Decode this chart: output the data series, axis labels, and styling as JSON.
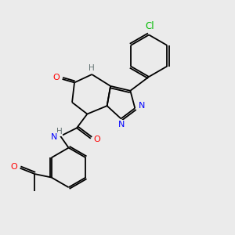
{
  "background_color": "#ebebeb",
  "atom_colors": {
    "C": "#000000",
    "N": "#0000ff",
    "O": "#ff0000",
    "Cl": "#00bb00",
    "H": "#607070"
  },
  "figsize": [
    3.0,
    3.0
  ],
  "dpi": 100,
  "lw": 1.3
}
